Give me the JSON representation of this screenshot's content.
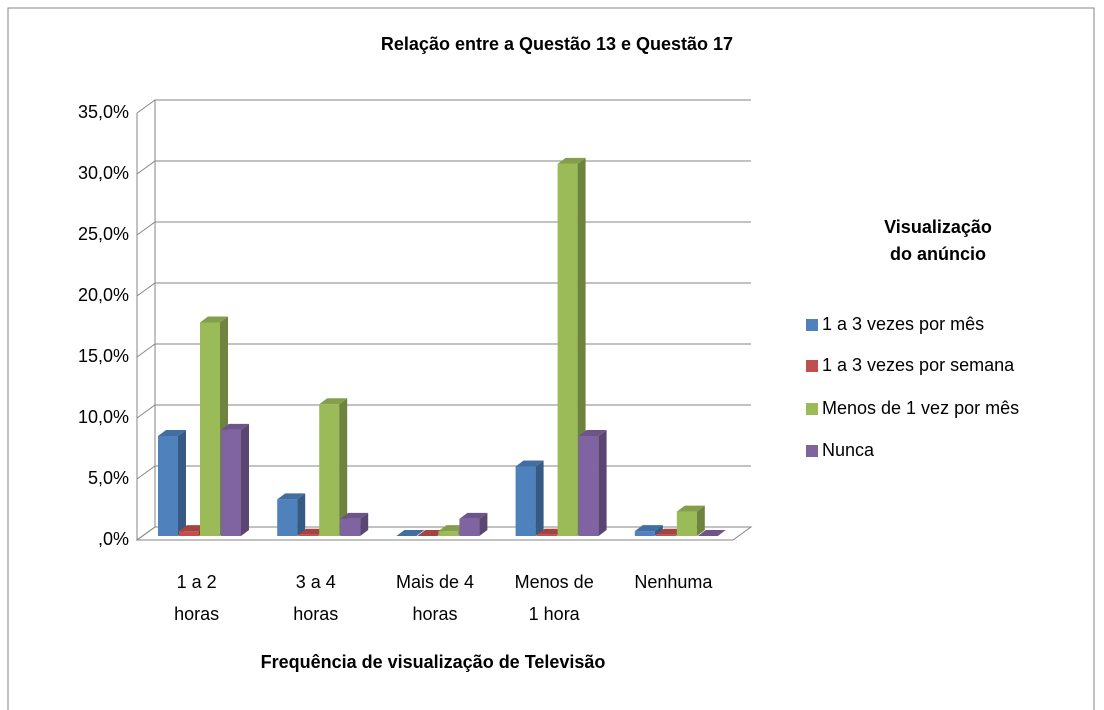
{
  "chart_data": {
    "type": "bar3d",
    "title": "Relação entre a Questão 13 e Questão 17",
    "x_label": "Frequência de visualização de Televisão",
    "legend_title": "Visualização\ndo anúncio",
    "legend": "right",
    "grid": true,
    "categories": [
      "1 a 2\nhoras",
      "3 a 4\nhoras",
      "Mais de 4\nhoras",
      "Menos de\n1 hora",
      "Nenhuma"
    ],
    "series": [
      {
        "name": "1 a 3 vezes por mês",
        "color": "#4f81bd",
        "values": [
          8.2,
          3.0,
          0,
          5.7,
          0.4
        ]
      },
      {
        "name": "1 a 3 vezes por semana",
        "color": "#c0504d",
        "values": [
          0.4,
          0.1,
          0,
          0.1,
          0.1
        ]
      },
      {
        "name": "Menos de 1 vez por mês",
        "color": "#9bbb59",
        "values": [
          17.5,
          10.8,
          0.4,
          30.5,
          2.0
        ]
      },
      {
        "name": "Nunca",
        "color": "#8064a2",
        "values": [
          8.7,
          1.4,
          1.4,
          8.2,
          0
        ]
      }
    ],
    "ylim": [
      0,
      35
    ],
    "yticks": [
      {
        "value": 0,
        "label": ",0%"
      },
      {
        "value": 5,
        "label": "5,0%"
      },
      {
        "value": 10,
        "label": "10,0%"
      },
      {
        "value": 15,
        "label": "15,0%"
      },
      {
        "value": 20,
        "label": "20,0%"
      },
      {
        "value": 25,
        "label": "25,0%"
      },
      {
        "value": 30,
        "label": "30,0%"
      },
      {
        "value": 35,
        "label": "35,0%"
      }
    ]
  }
}
